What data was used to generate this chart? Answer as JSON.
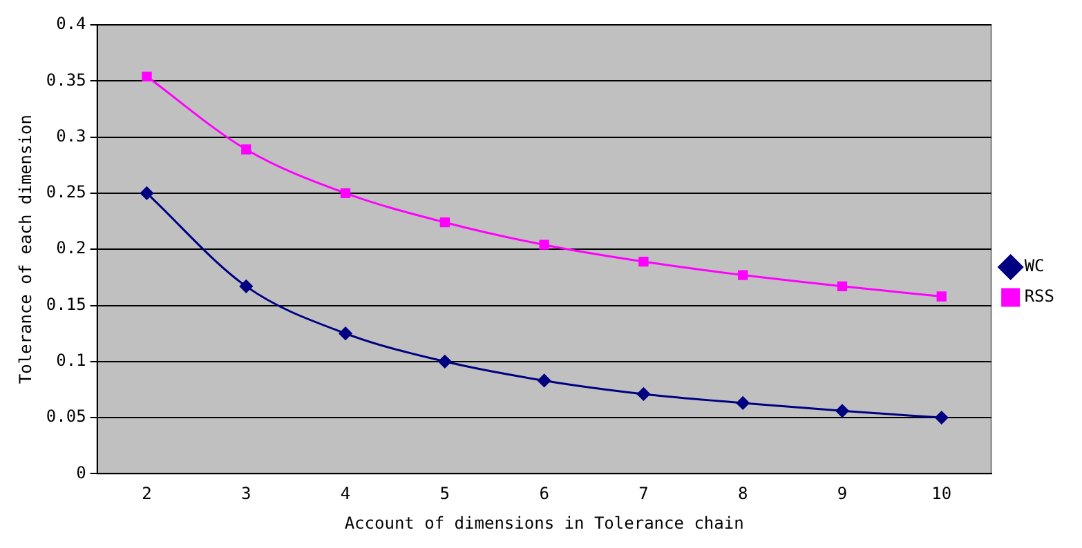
{
  "chart_data": {
    "type": "line",
    "xlabel": "Account of dimensions in Tolerance chain",
    "ylabel": "Tolerance of each dimension",
    "categories": [
      "2",
      "3",
      "4",
      "5",
      "6",
      "7",
      "8",
      "9",
      "10"
    ],
    "series": [
      {
        "name": "WC",
        "color": "#000080",
        "marker": "diamond",
        "values": [
          0.25,
          0.167,
          0.125,
          0.1,
          0.083,
          0.071,
          0.063,
          0.056,
          0.05
        ]
      },
      {
        "name": "RSS",
        "color": "#ff00ff",
        "marker": "square",
        "values": [
          0.354,
          0.289,
          0.25,
          0.224,
          0.204,
          0.189,
          0.177,
          0.167,
          0.158
        ]
      }
    ],
    "ylim": [
      0,
      0.4
    ],
    "yticks": [
      0,
      0.05,
      0.1,
      0.15,
      0.2,
      0.25,
      0.3,
      0.35,
      0.4
    ],
    "grid": "y",
    "legend": "right",
    "line_style": "solid"
  }
}
